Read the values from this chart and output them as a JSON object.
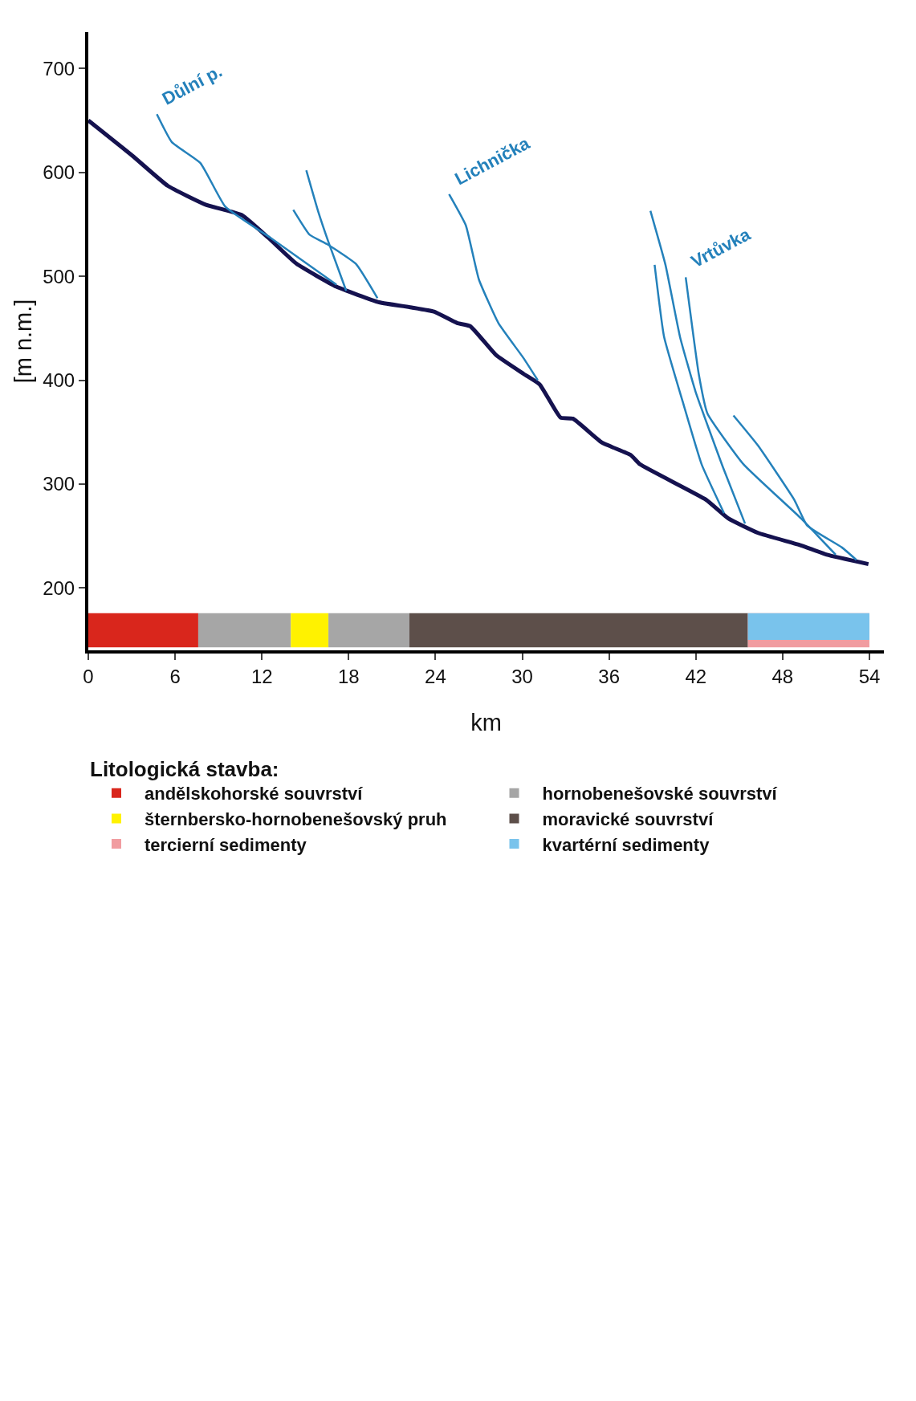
{
  "chart_data": {
    "type": "line",
    "xlabel": "km",
    "ylabel": "[m n.m.]",
    "legend_title": "Litologická stavba:",
    "legend": "bottom",
    "xlim": [
      0,
      55
    ],
    "xticks": [
      0,
      6,
      12,
      18,
      24,
      30,
      36,
      42,
      48,
      54
    ],
    "ylim": [
      140,
      735
    ],
    "yticks": [
      200,
      300,
      400,
      500,
      600,
      700
    ],
    "grid": false,
    "marker": "none",
    "line_style": "solid",
    "series": [
      {
        "color": "#15124f",
        "x": [
          0,
          3.05,
          5.5,
          8.1,
          10.6,
          12.45,
          14.4,
          17.15,
          20.1,
          22.35,
          23.9,
          25.5,
          26.4,
          28.2,
          30.1,
          31.2,
          32.65,
          33.5,
          35.5,
          37.5,
          38.14,
          42.7,
          44.24,
          46.3,
          49.27,
          51.06,
          53.93
        ],
        "values": [
          650,
          616,
          587,
          569,
          559,
          537,
          512,
          490,
          475,
          470,
          466,
          455,
          452,
          424,
          406,
          396,
          364,
          363,
          340,
          328,
          319,
          285,
          267,
          253,
          241,
          232,
          223
        ]
      },
      {
        "name": "Důlní p.",
        "color": "#2481bb",
        "x": [
          4.74,
          5.78,
          7.75,
          9.47,
          12.6,
          17.15
        ],
        "values": [
          656,
          629,
          609,
          567,
          537,
          492
        ]
      },
      {
        "color": "#2481bb",
        "x": [
          15.07,
          15.9,
          16.6,
          17.83
        ],
        "values": [
          602,
          562,
          533,
          486
        ]
      },
      {
        "color": "#2481bb",
        "x": [
          14.17,
          15.3,
          16.5,
          18.5,
          19.99
        ],
        "values": [
          564,
          540,
          531,
          512,
          479
        ]
      },
      {
        "name": "Lichnička",
        "color": "#2481bb",
        "x": [
          24.94,
          26.1,
          27.0,
          28.35,
          30.1,
          31.07
        ],
        "values": [
          579,
          549,
          497,
          455,
          421,
          400
        ]
      },
      {
        "name": "Vrtůvka",
        "color": "#2481bb",
        "x": [
          41.3,
          42.2,
          42.8,
          45.3,
          49.27,
          51.67
        ],
        "values": [
          499,
          406,
          368,
          319,
          267,
          232
        ]
      },
      {
        "color": "#2481bb",
        "x": [
          44.6,
          46.3,
          48.8,
          49.7,
          52.1,
          53.1
        ],
        "values": [
          366,
          337,
          285,
          260,
          239,
          227
        ]
      },
      {
        "color": "#2481bb",
        "x": [
          38.86,
          39.9,
          40.9,
          41.98,
          43.88,
          45.4
        ],
        "values": [
          563,
          511,
          442,
          389,
          316,
          262
        ]
      },
      {
        "color": "#2481bb",
        "x": [
          39.15,
          39.8,
          41.1,
          42.4,
          43.95
        ],
        "values": [
          511,
          442,
          379,
          319,
          272
        ]
      }
    ],
    "bands": [
      {
        "axis": "x",
        "from": 0,
        "to": 7.6,
        "label": "andělskohorské souvrství",
        "color": "#d9261c"
      },
      {
        "axis": "x",
        "from": 7.6,
        "to": 14,
        "label": "hornobenešovské souvrství",
        "color": "#a6a6a6"
      },
      {
        "axis": "x",
        "from": 14,
        "to": 16.6,
        "label": "šternbersko-hornobenešovský pruh",
        "color": "#fff200"
      },
      {
        "axis": "x",
        "from": 16.6,
        "to": 22.2,
        "color": "#a6a6a6"
      },
      {
        "axis": "x",
        "from": 22.2,
        "to": 45.6,
        "label": "moravické souvrství",
        "color": "#5d4f4a"
      },
      {
        "axis": "x",
        "from": 45.6,
        "to": 54,
        "label": "tercierní sedimenty",
        "color": "#f19ca0"
      },
      {
        "axis": "x",
        "from": 45.6,
        "to": 54,
        "label": "kvartérní sedimenty",
        "color": "#79c3ec"
      }
    ]
  }
}
